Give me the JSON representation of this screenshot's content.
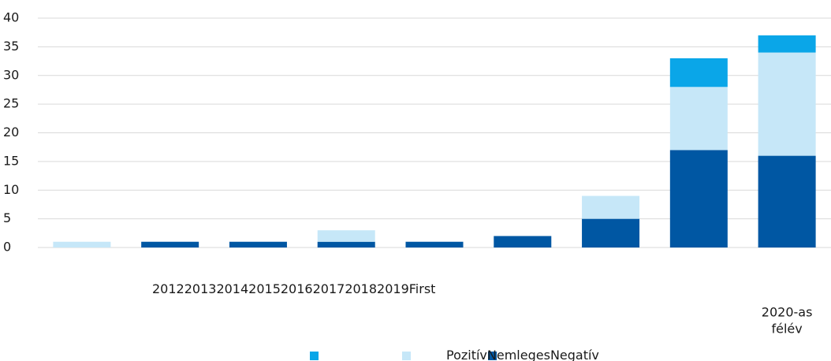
{
  "chart_data": {
    "type": "stacked_bar",
    "categories": [
      "2012",
      "2013",
      "2014",
      "2015",
      "2016",
      "2017",
      "2018",
      "2019",
      [
        "First",
        "2020-as",
        "félév"
      ]
    ],
    "series": [
      {
        "name": "Negatív",
        "color": "#0057a3",
        "values": [
          0,
          1,
          1,
          1,
          1,
          2,
          5,
          17,
          16
        ]
      },
      {
        "name": "Nemleges",
        "color": "#c6e7f8",
        "values": [
          1,
          0,
          0,
          2,
          0,
          0,
          4,
          11,
          18
        ]
      },
      {
        "name": "Pozitív",
        "color": "#0aa6e8",
        "values": [
          0,
          0,
          0,
          0,
          0,
          0,
          0,
          5,
          3
        ]
      }
    ],
    "ylim": [
      0,
      40
    ],
    "yticks": [
      0,
      5,
      10,
      15,
      20,
      25,
      30,
      35,
      40
    ],
    "grid": true
  }
}
